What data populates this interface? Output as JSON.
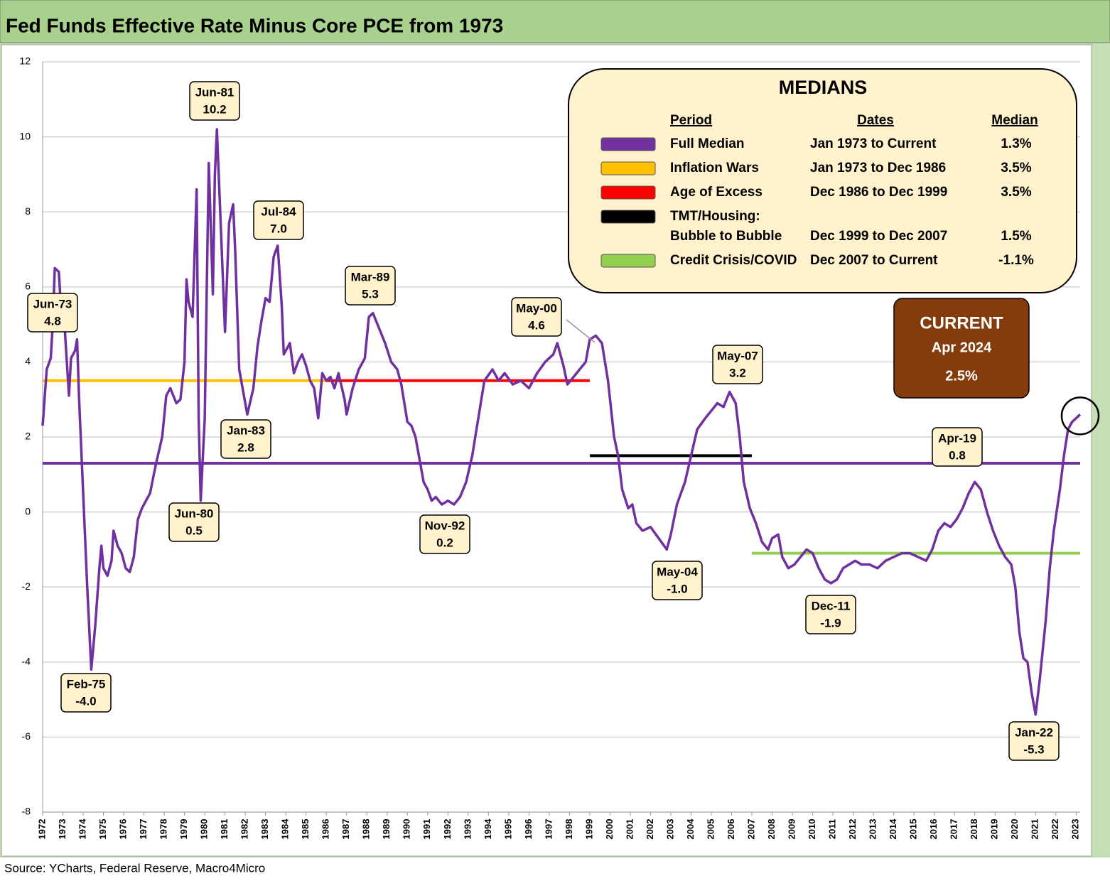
{
  "chart_data": {
    "type": "line",
    "title": "Fed Funds Effective Rate Minus Core PCE from 1973",
    "source": "Source: YCharts, Federal Reserve, Macro4Micro",
    "xlim": [
      1972,
      2023.2
    ],
    "xticks": [
      1972,
      1973,
      1974,
      1975,
      1976,
      1977,
      1978,
      1979,
      1980,
      1981,
      1982,
      1983,
      1984,
      1985,
      1986,
      1987,
      1988,
      1989,
      1990,
      1991,
      1992,
      1993,
      1994,
      1995,
      1996,
      1997,
      1998,
      1999,
      2000,
      2001,
      2002,
      2003,
      2004,
      2005,
      2006,
      2007,
      2008,
      2009,
      2010,
      2011,
      2012,
      2013,
      2014,
      2015,
      2016,
      2017,
      2018,
      2019,
      2020,
      2021,
      2022,
      2023
    ],
    "ylim": [
      -8,
      12
    ],
    "yticks": [
      -8,
      -6,
      -4,
      -2,
      0,
      2,
      4,
      6,
      8,
      10,
      12
    ],
    "grid": true,
    "series": [
      {
        "color": "#7030a0",
        "x": [
          1972.0,
          1972.2,
          1972.4,
          1972.5,
          1972.6,
          1972.8,
          1972.9,
          1973.1,
          1973.3,
          1973.4,
          1973.6,
          1973.7,
          1973.8,
          1974.0,
          1974.2,
          1974.4,
          1974.6,
          1974.8,
          1974.9,
          1975.0,
          1975.2,
          1975.4,
          1975.5,
          1975.7,
          1975.9,
          1976.1,
          1976.3,
          1976.5,
          1976.7,
          1976.9,
          1977.1,
          1977.3,
          1977.6,
          1977.9,
          1978.1,
          1978.3,
          1978.6,
          1978.8,
          1979.0,
          1979.1,
          1979.2,
          1979.4,
          1979.6,
          1979.7,
          1979.8,
          1980.0,
          1980.1,
          1980.2,
          1980.4,
          1980.5,
          1980.6,
          1980.8,
          1981.0,
          1981.2,
          1981.4,
          1981.5,
          1981.7,
          1981.9,
          1982.1,
          1982.4,
          1982.6,
          1982.8,
          1983.0,
          1983.2,
          1983.4,
          1983.6,
          1983.8,
          1983.9,
          1984.2,
          1984.4,
          1984.6,
          1984.8,
          1985.0,
          1985.2,
          1985.4,
          1985.6,
          1985.8,
          1986.0,
          1986.2,
          1986.4,
          1986.6,
          1986.9,
          1987.0,
          1987.3,
          1987.6,
          1987.9,
          1988.1,
          1988.3,
          1988.6,
          1988.9,
          1989.2,
          1989.5,
          1989.7,
          1990.0,
          1990.2,
          1990.4,
          1990.6,
          1990.8,
          1991.0,
          1991.2,
          1991.4,
          1991.7,
          1992.0,
          1992.3,
          1992.6,
          1992.9,
          1993.2,
          1993.5,
          1993.8,
          1994.2,
          1994.5,
          1994.8,
          1995.2,
          1995.6,
          1996.0,
          1996.4,
          1996.8,
          1997.2,
          1997.4,
          1997.7,
          1997.9,
          1998.2,
          1998.5,
          1998.8,
          1999.0,
          1999.3,
          1999.6,
          1999.9,
          2000.2,
          2000.4,
          2000.6,
          2000.9,
          2001.1,
          2001.3,
          2001.6,
          2002.0,
          2002.4,
          2002.8,
          2003.0,
          2003.3,
          2003.7,
          2004.0,
          2004.3,
          2004.7,
          2005.0,
          2005.3,
          2005.6,
          2005.9,
          2006.2,
          2006.4,
          2006.6,
          2006.9,
          2007.2,
          2007.5,
          2007.8,
          2008.0,
          2008.3,
          2008.5,
          2008.8,
          2009.1,
          2009.4,
          2009.7,
          2010.0,
          2010.3,
          2010.6,
          2010.9,
          2011.2,
          2011.5,
          2011.8,
          2012.1,
          2012.4,
          2012.8,
          2013.2,
          2013.6,
          2014.0,
          2014.4,
          2014.8,
          2015.2,
          2015.6,
          2015.9,
          2016.2,
          2016.5,
          2016.8,
          2017.1,
          2017.4,
          2017.7,
          2018.0,
          2018.3,
          2018.6,
          2018.9,
          2019.2,
          2019.5,
          2019.8,
          2020.0,
          2020.2,
          2020.4,
          2020.6,
          2020.8,
          2021.0,
          2021.2,
          2021.5,
          2021.7,
          2021.9,
          2022.2,
          2022.4,
          2022.6,
          2022.8,
          2023.0,
          2023.2
        ],
        "values": [
          2.3,
          3.8,
          4.1,
          5.0,
          6.5,
          6.4,
          5.5,
          4.8,
          3.1,
          4.1,
          4.3,
          4.6,
          3.0,
          0.5,
          -2.0,
          -4.2,
          -3.0,
          -1.5,
          -0.9,
          -1.5,
          -1.7,
          -1.3,
          -0.5,
          -0.9,
          -1.1,
          -1.5,
          -1.6,
          -1.2,
          -0.2,
          0.1,
          0.3,
          0.5,
          1.3,
          2.0,
          3.1,
          3.3,
          2.9,
          3.0,
          4.0,
          6.2,
          5.6,
          5.2,
          8.6,
          2.5,
          0.3,
          2.5,
          6.0,
          9.3,
          5.8,
          9.0,
          10.2,
          7.5,
          4.8,
          7.7,
          8.2,
          7.0,
          3.8,
          3.2,
          2.6,
          3.3,
          4.4,
          5.1,
          5.7,
          5.6,
          6.8,
          7.1,
          5.5,
          4.2,
          4.5,
          3.7,
          4.0,
          4.2,
          3.9,
          3.5,
          3.3,
          2.5,
          3.7,
          3.5,
          3.6,
          3.3,
          3.7,
          3.0,
          2.6,
          3.3,
          3.8,
          4.1,
          5.2,
          5.3,
          4.9,
          4.5,
          4.0,
          3.8,
          3.4,
          2.4,
          2.3,
          2.0,
          1.4,
          0.8,
          0.6,
          0.3,
          0.4,
          0.2,
          0.3,
          0.2,
          0.4,
          0.8,
          1.5,
          2.5,
          3.5,
          3.8,
          3.5,
          3.7,
          3.4,
          3.5,
          3.3,
          3.7,
          4.0,
          4.2,
          4.5,
          3.9,
          3.4,
          3.6,
          3.8,
          4.0,
          4.6,
          4.7,
          4.5,
          3.5,
          2.0,
          1.5,
          0.6,
          0.1,
          0.2,
          -0.3,
          -0.5,
          -0.4,
          -0.7,
          -1.0,
          -0.6,
          0.2,
          0.8,
          1.5,
          2.2,
          2.5,
          2.7,
          2.9,
          2.8,
          3.2,
          2.9,
          2.0,
          0.8,
          0.1,
          -0.3,
          -0.8,
          -1.0,
          -0.7,
          -0.6,
          -1.2,
          -1.5,
          -1.4,
          -1.2,
          -1.0,
          -1.1,
          -1.5,
          -1.8,
          -1.9,
          -1.8,
          -1.5,
          -1.4,
          -1.3,
          -1.4,
          -1.4,
          -1.5,
          -1.3,
          -1.2,
          -1.1,
          -1.1,
          -1.2,
          -1.3,
          -1.0,
          -0.5,
          -0.3,
          -0.4,
          -0.2,
          0.1,
          0.5,
          0.8,
          0.6,
          0.0,
          -0.5,
          -0.9,
          -1.2,
          -1.4,
          -2.0,
          -3.2,
          -3.9,
          -4.0,
          -4.8,
          -5.4,
          -4.5,
          -2.9,
          -1.5,
          -0.5,
          0.6,
          1.5,
          2.2,
          2.4,
          2.5,
          2.6
        ]
      }
    ],
    "annotations": [
      {
        "date": "Jun-73",
        "value": 4.8
      },
      {
        "date": "Feb-75",
        "value": -4.0,
        "value_label": "-4.0"
      },
      {
        "date": "Jun-81",
        "value": 10.2
      },
      {
        "date": "Jun-80",
        "value": 0.5
      },
      {
        "date": "Jul-84",
        "value": 7.0,
        "value_label": "7.0"
      },
      {
        "date": "Jan-83",
        "value": 2.8
      },
      {
        "date": "Mar-89",
        "value": 5.3
      },
      {
        "date": "Nov-92",
        "value": 0.2
      },
      {
        "date": "May-00",
        "value": 4.6
      },
      {
        "date": "May-07",
        "value": 3.2
      },
      {
        "date": "May-04",
        "value": -1.0,
        "value_label": "-1.0"
      },
      {
        "date": "Dec-11",
        "value": -1.9
      },
      {
        "date": "Apr-19",
        "value": 0.8
      },
      {
        "date": "Jan-22",
        "value": -5.3
      }
    ],
    "medians": {
      "title": "MEDIANS",
      "headers": [
        "Period",
        "Dates",
        "Median"
      ],
      "rows": [
        {
          "period": [
            "Full Median"
          ],
          "dates": "Jan 1973 to Current",
          "value": 1.3,
          "value_label": "1.3%",
          "color": "#7030a0",
          "x": [
            1972,
            2023.2
          ]
        },
        {
          "period": [
            "Inflation Wars"
          ],
          "dates": "Jan 1973 to Dec 1986",
          "value": 3.5,
          "value_label": "3.5%",
          "color": "#ffc000",
          "x": [
            1972,
            1986
          ]
        },
        {
          "period": [
            "Age of Excess"
          ],
          "dates": "Dec 1986 to Dec 1999",
          "value": 3.5,
          "value_label": "3.5%",
          "color": "#ff0000",
          "x": [
            1986,
            1999
          ]
        },
        {
          "period": [
            "TMT/Housing:",
            "Bubble to Bubble"
          ],
          "dates": "Dec 1999 to Dec 2007",
          "value": 1.5,
          "value_label": "1.5%",
          "color": "#000000",
          "x": [
            1999,
            2007
          ]
        },
        {
          "period": [
            "Credit Crisis/COVID"
          ],
          "dates": "Dec 2007 to Current",
          "value": -1.1,
          "value_label": "-1.1%",
          "color": "#92d050",
          "x": [
            2007,
            2023.2
          ]
        }
      ]
    },
    "current": {
      "title": "CURRENT",
      "date": "Apr 2024",
      "value": 2.5,
      "value_label": "2.5%"
    }
  }
}
